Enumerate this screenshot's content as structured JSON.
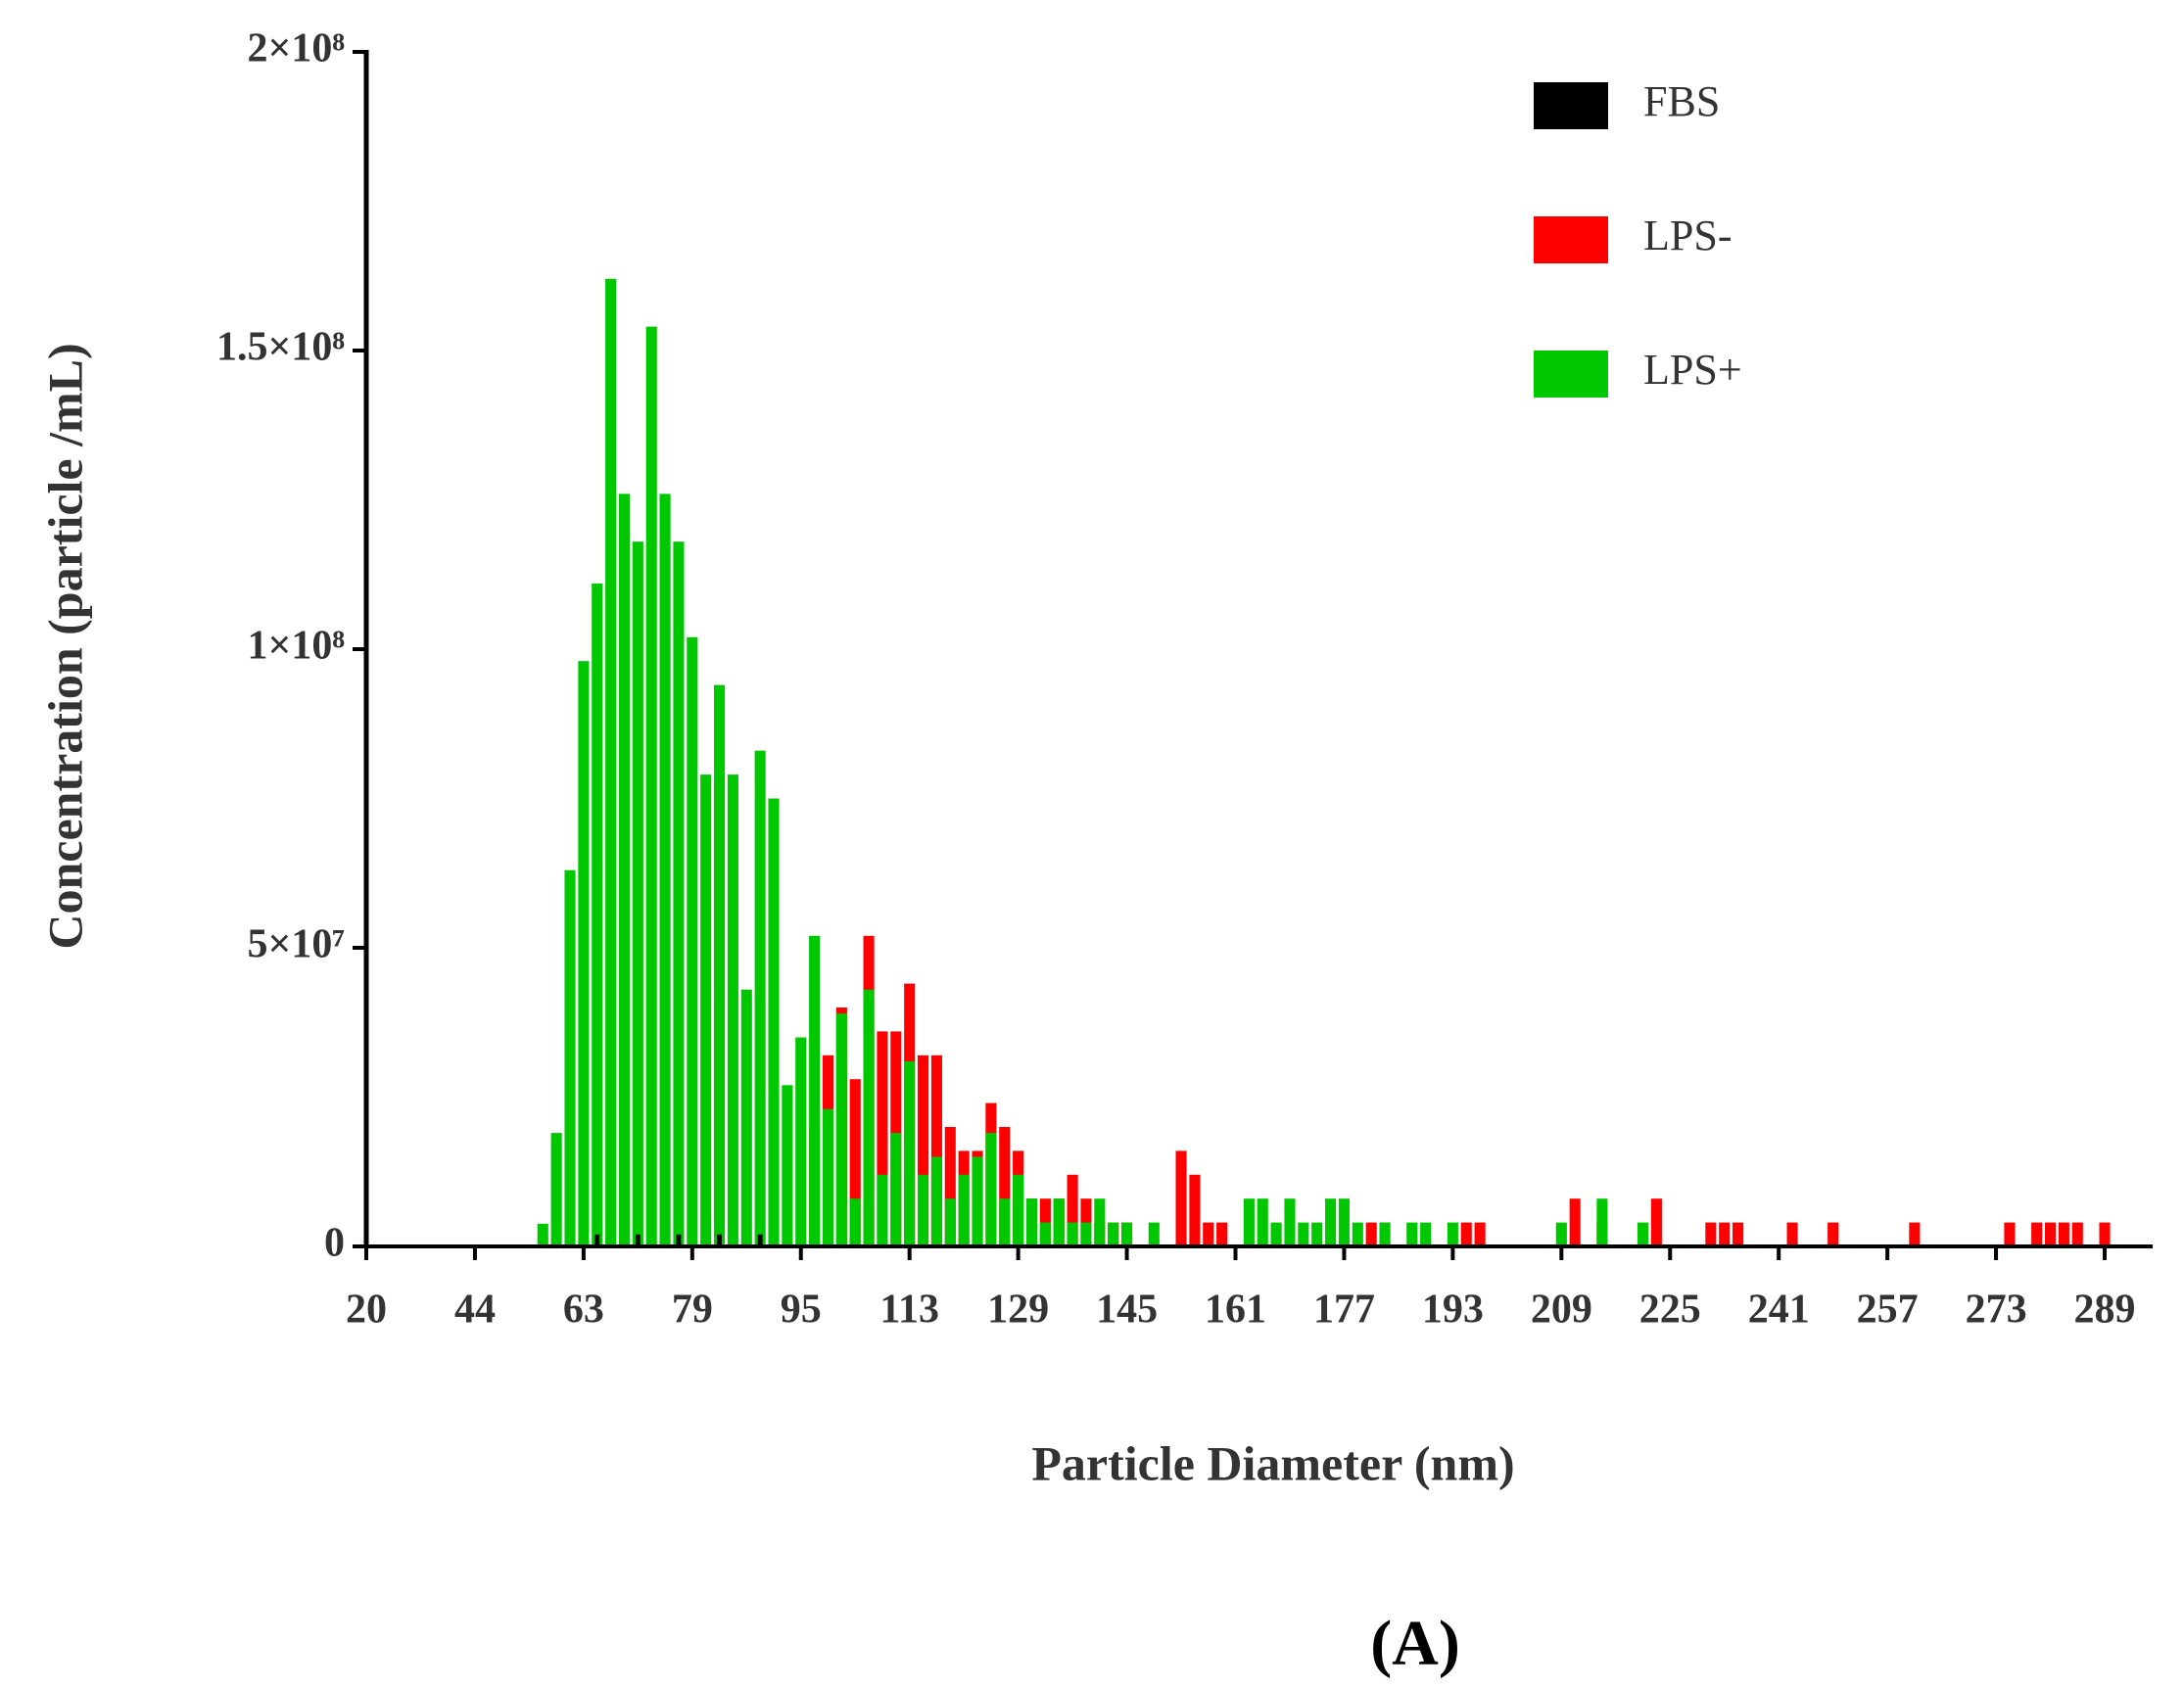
{
  "chart_data": {
    "type": "bar",
    "y_label": "Concentration (particle /mL)",
    "x_label": "Particle Diameter (nm)",
    "panel_label": "(A)",
    "legend": "top-right",
    "ylim": [
      0,
      200000000.0
    ],
    "yticks": [
      0,
      {
        "value": 50000000.0,
        "label": "5×10⁷"
      },
      {
        "value": 100000000.0,
        "label": "1×10⁸"
      },
      {
        "value": 150000000.0,
        "label": "1.5×10⁸"
      },
      {
        "value": 200000000.0,
        "label": "2×10⁸"
      }
    ],
    "categories": [
      "20",
      null,
      null,
      null,
      null,
      null,
      null,
      null,
      "44",
      null,
      null,
      null,
      null,
      null,
      null,
      null,
      "63",
      null,
      null,
      null,
      null,
      null,
      null,
      null,
      "79",
      null,
      null,
      null,
      null,
      null,
      null,
      null,
      "95",
      null,
      null,
      null,
      null,
      null,
      null,
      null,
      "113",
      null,
      null,
      null,
      null,
      null,
      null,
      null,
      "129",
      null,
      null,
      null,
      null,
      null,
      null,
      null,
      "145",
      null,
      null,
      null,
      null,
      null,
      null,
      null,
      "161",
      null,
      null,
      null,
      null,
      null,
      null,
      null,
      "177",
      null,
      null,
      null,
      null,
      null,
      null,
      null,
      "193",
      null,
      null,
      null,
      null,
      null,
      null,
      null,
      "209",
      null,
      null,
      null,
      null,
      null,
      null,
      null,
      "225",
      null,
      null,
      null,
      null,
      null,
      null,
      null,
      "241",
      null,
      null,
      null,
      null,
      null,
      null,
      null,
      "257",
      null,
      null,
      null,
      null,
      null,
      null,
      null,
      "273",
      null,
      null,
      null,
      null,
      null,
      null,
      null,
      "289"
    ],
    "series": [
      {
        "name": "LPS-",
        "color": "#ff0000",
        "values": [
          0,
          0,
          0,
          0,
          0,
          0,
          0,
          0,
          0,
          0,
          0,
          0,
          0,
          0,
          0,
          0,
          0,
          0,
          0,
          0,
          0,
          0,
          0,
          0,
          0,
          0,
          0,
          0,
          0,
          0,
          0,
          0,
          0,
          20000000.0,
          32000000.0,
          40000000.0,
          28000000.0,
          52000000.0,
          36000000.0,
          36000000.0,
          44000000.0,
          32000000.0,
          32000000.0,
          20000000.0,
          16000000.0,
          16000000.0,
          24000000.0,
          20000000.0,
          16000000.0,
          8000000.0,
          8000000.0,
          8000000.0,
          12000000.0,
          8000000.0,
          4000000.0,
          4000000.0,
          4000000.0,
          0,
          0,
          0,
          16000000.0,
          12000000.0,
          4000000.0,
          4000000.0,
          0,
          0,
          0,
          0,
          0,
          0,
          0,
          0,
          0,
          0,
          4000000.0,
          4000000.0,
          0,
          0,
          0,
          0,
          0,
          4000000.0,
          4000000.0,
          0,
          0,
          0,
          0,
          0,
          0,
          8000000.0,
          0,
          4000000.0,
          0,
          0,
          0,
          8000000.0,
          0,
          0,
          0,
          4000000.0,
          4000000.0,
          4000000.0,
          0,
          0,
          0,
          4000000.0,
          0,
          0,
          4000000.0,
          0,
          0,
          0,
          0,
          0,
          4000000.0,
          0,
          0,
          0,
          0,
          0,
          0,
          4000000.0,
          0,
          4000000.0,
          4000000.0,
          4000000.0,
          4000000.0,
          0,
          4000000.0
        ]
      },
      {
        "name": "LPS+",
        "color": "#00c800",
        "values": [
          0,
          0,
          0,
          0,
          0,
          0,
          0,
          0,
          0,
          0,
          0,
          0,
          0,
          3800000.0,
          19000000.0,
          63000000.0,
          98000000.0,
          111000000.0,
          162000000.0,
          126000000.0,
          118000000.0,
          154000000.0,
          126000000.0,
          118000000.0,
          102000000.0,
          79000000.0,
          94000000.0,
          79000000.0,
          43000000.0,
          83000000.0,
          75000000.0,
          27000000.0,
          35000000.0,
          52000000.0,
          23000000.0,
          39000000.0,
          8000000.0,
          43000000.0,
          12000000.0,
          19000000.0,
          31000000.0,
          12000000.0,
          15000000.0,
          8000000.0,
          12000000.0,
          15000000.0,
          19000000.0,
          8000000.0,
          12000000.0,
          8000000.0,
          4000000.0,
          8000000.0,
          4000000.0,
          4000000.0,
          8000000.0,
          4000000.0,
          4000000.0,
          0,
          4000000.0,
          0,
          0,
          0,
          0,
          0,
          0,
          8000000.0,
          8000000.0,
          4000000.0,
          8000000.0,
          4000000.0,
          4000000.0,
          8000000.0,
          8000000.0,
          4000000.0,
          0,
          4000000.0,
          0,
          4000000.0,
          4000000.0,
          0,
          4000000.0,
          0,
          0,
          0,
          0,
          0,
          0,
          0,
          4000000.0,
          0,
          0,
          8000000.0,
          0,
          0,
          4000000.0,
          0,
          0,
          0,
          0,
          0,
          0,
          0,
          0,
          0,
          0,
          0,
          0,
          0,
          0,
          0,
          0,
          0,
          0,
          0,
          0,
          0,
          0,
          0,
          0,
          0,
          0,
          0,
          0,
          0,
          0,
          0,
          0,
          0,
          0
        ]
      },
      {
        "name": "FBS",
        "color": "#000000",
        "values": [
          0,
          0,
          0,
          0,
          0,
          0,
          0,
          0,
          0,
          0,
          0,
          0,
          0,
          0,
          0,
          0,
          0,
          2000000.0,
          0,
          0,
          2000000.0,
          0,
          0,
          2000000.0,
          0,
          0,
          2000000.0,
          0,
          0,
          2000000.0,
          0,
          0,
          0,
          0,
          0,
          0,
          0,
          0,
          0,
          0,
          0,
          0,
          0,
          0,
          0,
          0,
          0,
          0,
          0,
          0,
          0,
          0,
          0,
          0,
          0,
          0,
          0,
          0,
          0,
          0,
          0,
          0,
          0,
          0,
          0,
          0,
          0,
          0,
          0,
          0,
          0,
          0,
          0,
          0,
          0,
          0,
          0,
          0,
          0,
          0,
          0,
          0,
          0,
          0,
          0,
          0,
          0,
          0,
          0,
          0,
          0,
          0,
          0,
          0,
          0,
          0,
          0,
          0,
          0,
          0,
          0,
          0,
          0,
          0,
          0,
          0,
          0,
          0,
          0,
          0,
          0,
          0,
          0,
          0,
          0,
          0,
          0,
          0,
          0,
          0,
          0,
          0,
          0,
          0,
          0,
          0,
          0,
          0,
          0
        ]
      }
    ]
  }
}
